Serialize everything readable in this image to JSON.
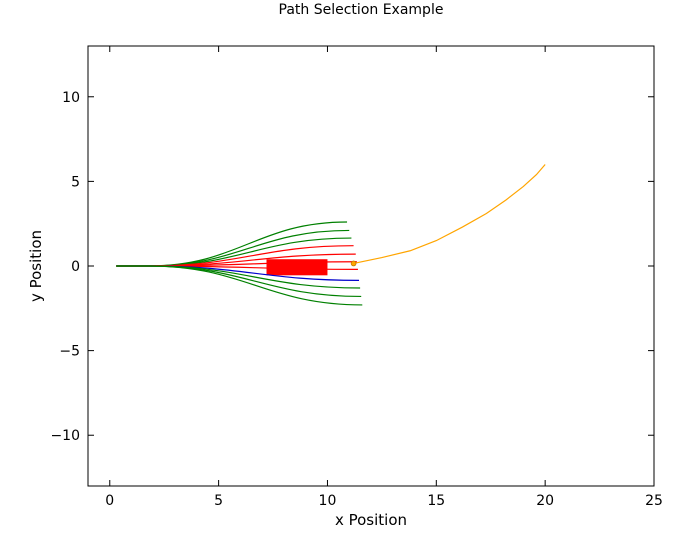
{
  "chart_data": {
    "type": "line",
    "title": "Path Selection Example",
    "xlabel": "x Position",
    "ylabel": "y Position",
    "xlim": [
      -1,
      25
    ],
    "ylim": [
      -13,
      13
    ],
    "xticks": [
      0,
      5,
      10,
      15,
      20,
      25
    ],
    "yticks": [
      -10,
      -5,
      0,
      5,
      10
    ],
    "xtick_labels": [
      "0",
      "5",
      "10",
      "15",
      "20",
      "25"
    ],
    "ytick_labels": [
      "−10",
      "−5",
      "0",
      "5",
      "10"
    ],
    "grid": false,
    "colors": {
      "green": "#008000",
      "red": "#ff0000",
      "blue": "#0000cc",
      "orange": "#ffa500",
      "black": "#000000"
    },
    "candidate_paths": [
      {
        "color": "green",
        "end": [
          10.9,
          2.6
        ]
      },
      {
        "color": "green",
        "end": [
          11.0,
          2.1
        ]
      },
      {
        "color": "green",
        "end": [
          11.1,
          1.65
        ]
      },
      {
        "color": "red",
        "end": [
          11.2,
          1.2
        ]
      },
      {
        "color": "red",
        "end": [
          11.3,
          0.7
        ]
      },
      {
        "color": "red",
        "end": [
          11.35,
          0.25
        ]
      },
      {
        "color": "red",
        "end": [
          11.4,
          -0.2
        ]
      },
      {
        "color": "blue",
        "end": [
          11.45,
          -0.85
        ]
      },
      {
        "color": "green",
        "end": [
          11.5,
          -1.3
        ]
      },
      {
        "color": "green",
        "end": [
          11.55,
          -1.8
        ]
      },
      {
        "color": "green",
        "end": [
          11.6,
          -2.3
        ]
      }
    ],
    "path_start": [
      0.3,
      0
    ],
    "path_knee": 1.8,
    "obstacle": {
      "x": [
        7.2,
        10.0
      ],
      "y": [
        -0.55,
        0.4
      ],
      "color": "red"
    },
    "traveled_path": {
      "color": "orange",
      "x": [
        11.2,
        12.5,
        13.8,
        15.0,
        16.2,
        17.3,
        18.2,
        19.0,
        19.6,
        20.0
      ],
      "y": [
        0.15,
        0.5,
        0.9,
        1.5,
        2.3,
        3.1,
        3.9,
        4.7,
        5.4,
        6.0
      ]
    },
    "current_position": {
      "x": 11.2,
      "y": 0.15,
      "color": "orange"
    }
  }
}
